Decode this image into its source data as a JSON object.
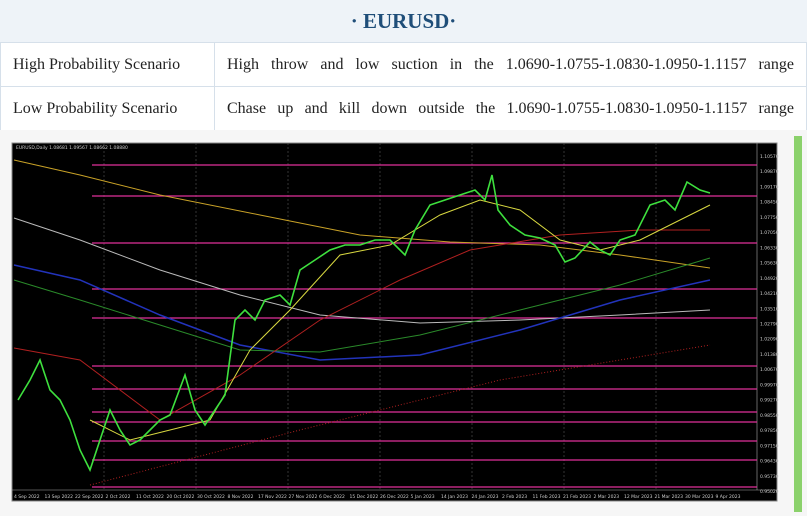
{
  "header": {
    "title": "· EURUSD·"
  },
  "table": {
    "rows": [
      [
        "High Probability Scenario",
        "High throw and low suction in the 1.0690-1.0755-1.0830-1.0950-1.1157 range"
      ],
      [
        "Low Probability Scenario",
        "Chase up and kill down outside the 1.0690-1.0755-1.0830-1.0950-1.1157 range"
      ]
    ]
  },
  "chart": {
    "label": "EURUSD,Daily  1.08681 1.09567 1.08662 1.08880",
    "price_labels": [
      "1.10570",
      "1.09870",
      "1.09170",
      "1.08450",
      "1.07750",
      "1.07050",
      "1.06330",
      "1.05630",
      "1.04920",
      "1.04210",
      "1.03510",
      "1.02790",
      "1.02090",
      "1.01380",
      "1.00670",
      "0.99970",
      "0.99270",
      "0.98550",
      "0.97850",
      "0.97150",
      "0.96430",
      "0.95730",
      "0.95020"
    ],
    "date_labels": [
      "4 Sep 2022",
      "13 Sep 2022",
      "22 Sep 2022",
      "2 Oct 2022",
      "11 Oct 2022",
      "20 Oct 2022",
      "30 Oct 2022",
      "8 Nov 2022",
      "17 Nov 2022",
      "27 Nov 2022",
      "6 Dec 2022",
      "15 Dec 2022",
      "26 Dec 2022",
      "5 Jan 2023",
      "14 Jan 2023",
      "24 Jan 2023",
      "2 Feb 2023",
      "11 Feb 2023",
      "21 Feb 2023",
      "2 Mar 2023",
      "12 Mar 2023",
      "21 Mar 2023",
      "30 Mar 2023",
      "9 Apr 2023"
    ]
  }
}
